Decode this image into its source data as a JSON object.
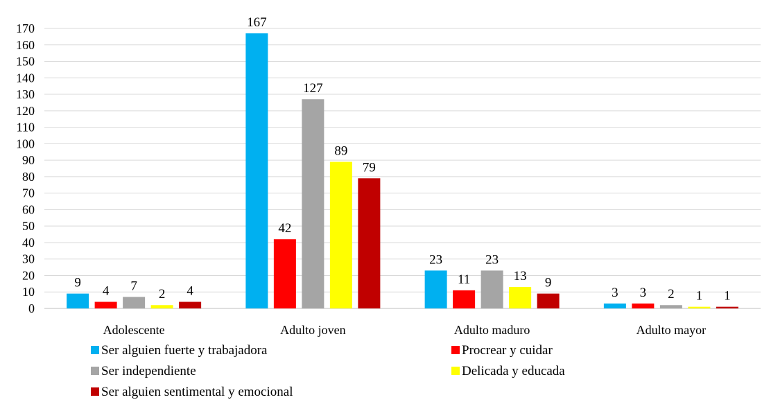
{
  "chart_data": {
    "type": "bar",
    "title": "",
    "xlabel": "",
    "ylabel": "",
    "ylim": [
      0,
      170
    ],
    "yticks": [
      0,
      10,
      20,
      30,
      40,
      50,
      60,
      70,
      80,
      90,
      100,
      110,
      120,
      130,
      140,
      150,
      160,
      170
    ],
    "grid": true,
    "legend_position": "bottom",
    "categories": [
      "Adolescente",
      "Adulto joven",
      "Adulto maduro",
      "Adulto mayor"
    ],
    "series": [
      {
        "name": "Ser alguien fuerte y trabajadora",
        "color": "#00b0f0",
        "values": [
          9,
          167,
          23,
          3
        ]
      },
      {
        "name": "Procrear y cuidar",
        "color": "#ff0000",
        "values": [
          4,
          42,
          11,
          3
        ]
      },
      {
        "name": "Ser independiente",
        "color": "#a5a5a5",
        "values": [
          7,
          127,
          23,
          2
        ]
      },
      {
        "name": "Delicada y educada",
        "color": "#ffff00",
        "values": [
          2,
          89,
          13,
          1
        ]
      },
      {
        "name": "Ser alguien sentimental y emocional",
        "color": "#c00000",
        "values": [
          4,
          79,
          9,
          1
        ]
      }
    ]
  }
}
